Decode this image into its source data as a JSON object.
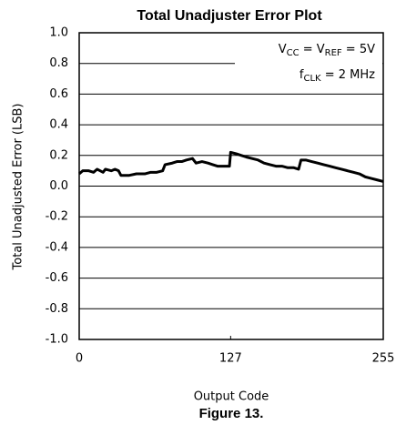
{
  "chart_data": {
    "type": "line",
    "title": "Total Unadjuster Error Plot",
    "x_label": "Output Code",
    "y_label": "Total Unadjusted Error (LSB)",
    "caption": "Figure 13.",
    "annotations": [
      [
        "V",
        {
          "sub": "CC"
        },
        " = V",
        {
          "sub": "REF"
        },
        " = 5V"
      ],
      [
        "f",
        {
          "sub": "CLK"
        },
        " = 2 MHz"
      ]
    ],
    "xlim": [
      0,
      255
    ],
    "xticks": [
      0,
      127,
      255
    ],
    "ylim": [
      -1,
      1
    ],
    "yticks": [
      {
        "value": 1,
        "label": "1.0"
      },
      0.8,
      0.6,
      0.4,
      0.2,
      {
        "value": 0,
        "label": "0.0"
      },
      -0.2,
      -0.4,
      -0.6,
      -0.8,
      {
        "value": -1,
        "label": "-1.0"
      }
    ],
    "grid": true,
    "series": [
      {
        "color": "#000000",
        "x": [
          0,
          3,
          8,
          12,
          15,
          20,
          22,
          27,
          30,
          33,
          35,
          42,
          48,
          55,
          60,
          65,
          70,
          72,
          78,
          82,
          86,
          90,
          95,
          98,
          103,
          108,
          112,
          116,
          122,
          126,
          127,
          132,
          136,
          140,
          145,
          150,
          155,
          160,
          165,
          170,
          175,
          180,
          184,
          186,
          190,
          195,
          200,
          205,
          210,
          215,
          220,
          225,
          230,
          235,
          240,
          245,
          250,
          255
        ],
        "values": [
          0.08,
          0.1,
          0.1,
          0.09,
          0.11,
          0.09,
          0.11,
          0.1,
          0.11,
          0.1,
          0.07,
          0.07,
          0.08,
          0.08,
          0.09,
          0.09,
          0.1,
          0.14,
          0.15,
          0.16,
          0.16,
          0.17,
          0.18,
          0.15,
          0.16,
          0.15,
          0.14,
          0.13,
          0.13,
          0.13,
          0.22,
          0.21,
          0.2,
          0.19,
          0.18,
          0.17,
          0.15,
          0.14,
          0.13,
          0.13,
          0.12,
          0.12,
          0.11,
          0.17,
          0.17,
          0.16,
          0.15,
          0.14,
          0.13,
          0.12,
          0.11,
          0.1,
          0.09,
          0.08,
          0.06,
          0.05,
          0.04,
          0.03
        ]
      }
    ]
  }
}
